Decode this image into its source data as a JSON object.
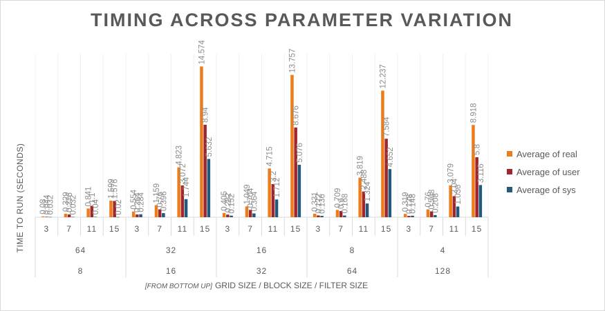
{
  "chart_data": {
    "type": "bar",
    "title": "TIMING ACROSS PARAMETER VARIATION",
    "ylabel": "TIME TO RUN (SECONDS)",
    "xlabel_prefix": "[FROM BOTTOM UP]",
    "xlabel": "GRID SIZE / BLOCK SIZE / FILTER SIZE",
    "ylim": [
      0,
      16
    ],
    "grid": false,
    "legend_position": "right",
    "filter_sizes": [
      "3",
      "7",
      "11",
      "15"
    ],
    "groups": [
      {
        "block_size": "64",
        "grid_size": "8"
      },
      {
        "block_size": "32",
        "grid_size": "16"
      },
      {
        "block_size": "16",
        "grid_size": "32"
      },
      {
        "block_size": "8",
        "grid_size": "64"
      },
      {
        "block_size": "4",
        "grid_size": "128"
      }
    ],
    "series": [
      {
        "name": "Average of real",
        "color": "#ed7d1c",
        "values": [
          0.08,
          0.329,
          0.841,
          1.599,
          0.554,
          1.159,
          4.823,
          14.574,
          0.405,
          1.049,
          4.715,
          13.757,
          0.331,
          0.709,
          3.819,
          12.237,
          0.319,
          0.76,
          3.079,
          8.918
        ]
      },
      {
        "name": "Average of user",
        "color": "#a0262c",
        "values": [
          0.044,
          0.276,
          1.1,
          1.576,
          0.264,
          0.76,
          3.072,
          8.94,
          0.252,
          0.704,
          3.2,
          8.676,
          0.172,
          0.6,
          2.488,
          7.584,
          0.128,
          0.568,
          2.04,
          5.8
        ]
      },
      {
        "name": "Average of sys",
        "color": "#215a7d",
        "values": [
          0.032,
          0.032,
          0.04,
          0.02,
          0.284,
          0.396,
          1.744,
          5.632,
          0.152,
          0.364,
          1.712,
          5.076,
          0.136,
          0.168,
          1.324,
          4.652,
          0.148,
          0.208,
          1.036,
          3.116
        ]
      }
    ]
  }
}
